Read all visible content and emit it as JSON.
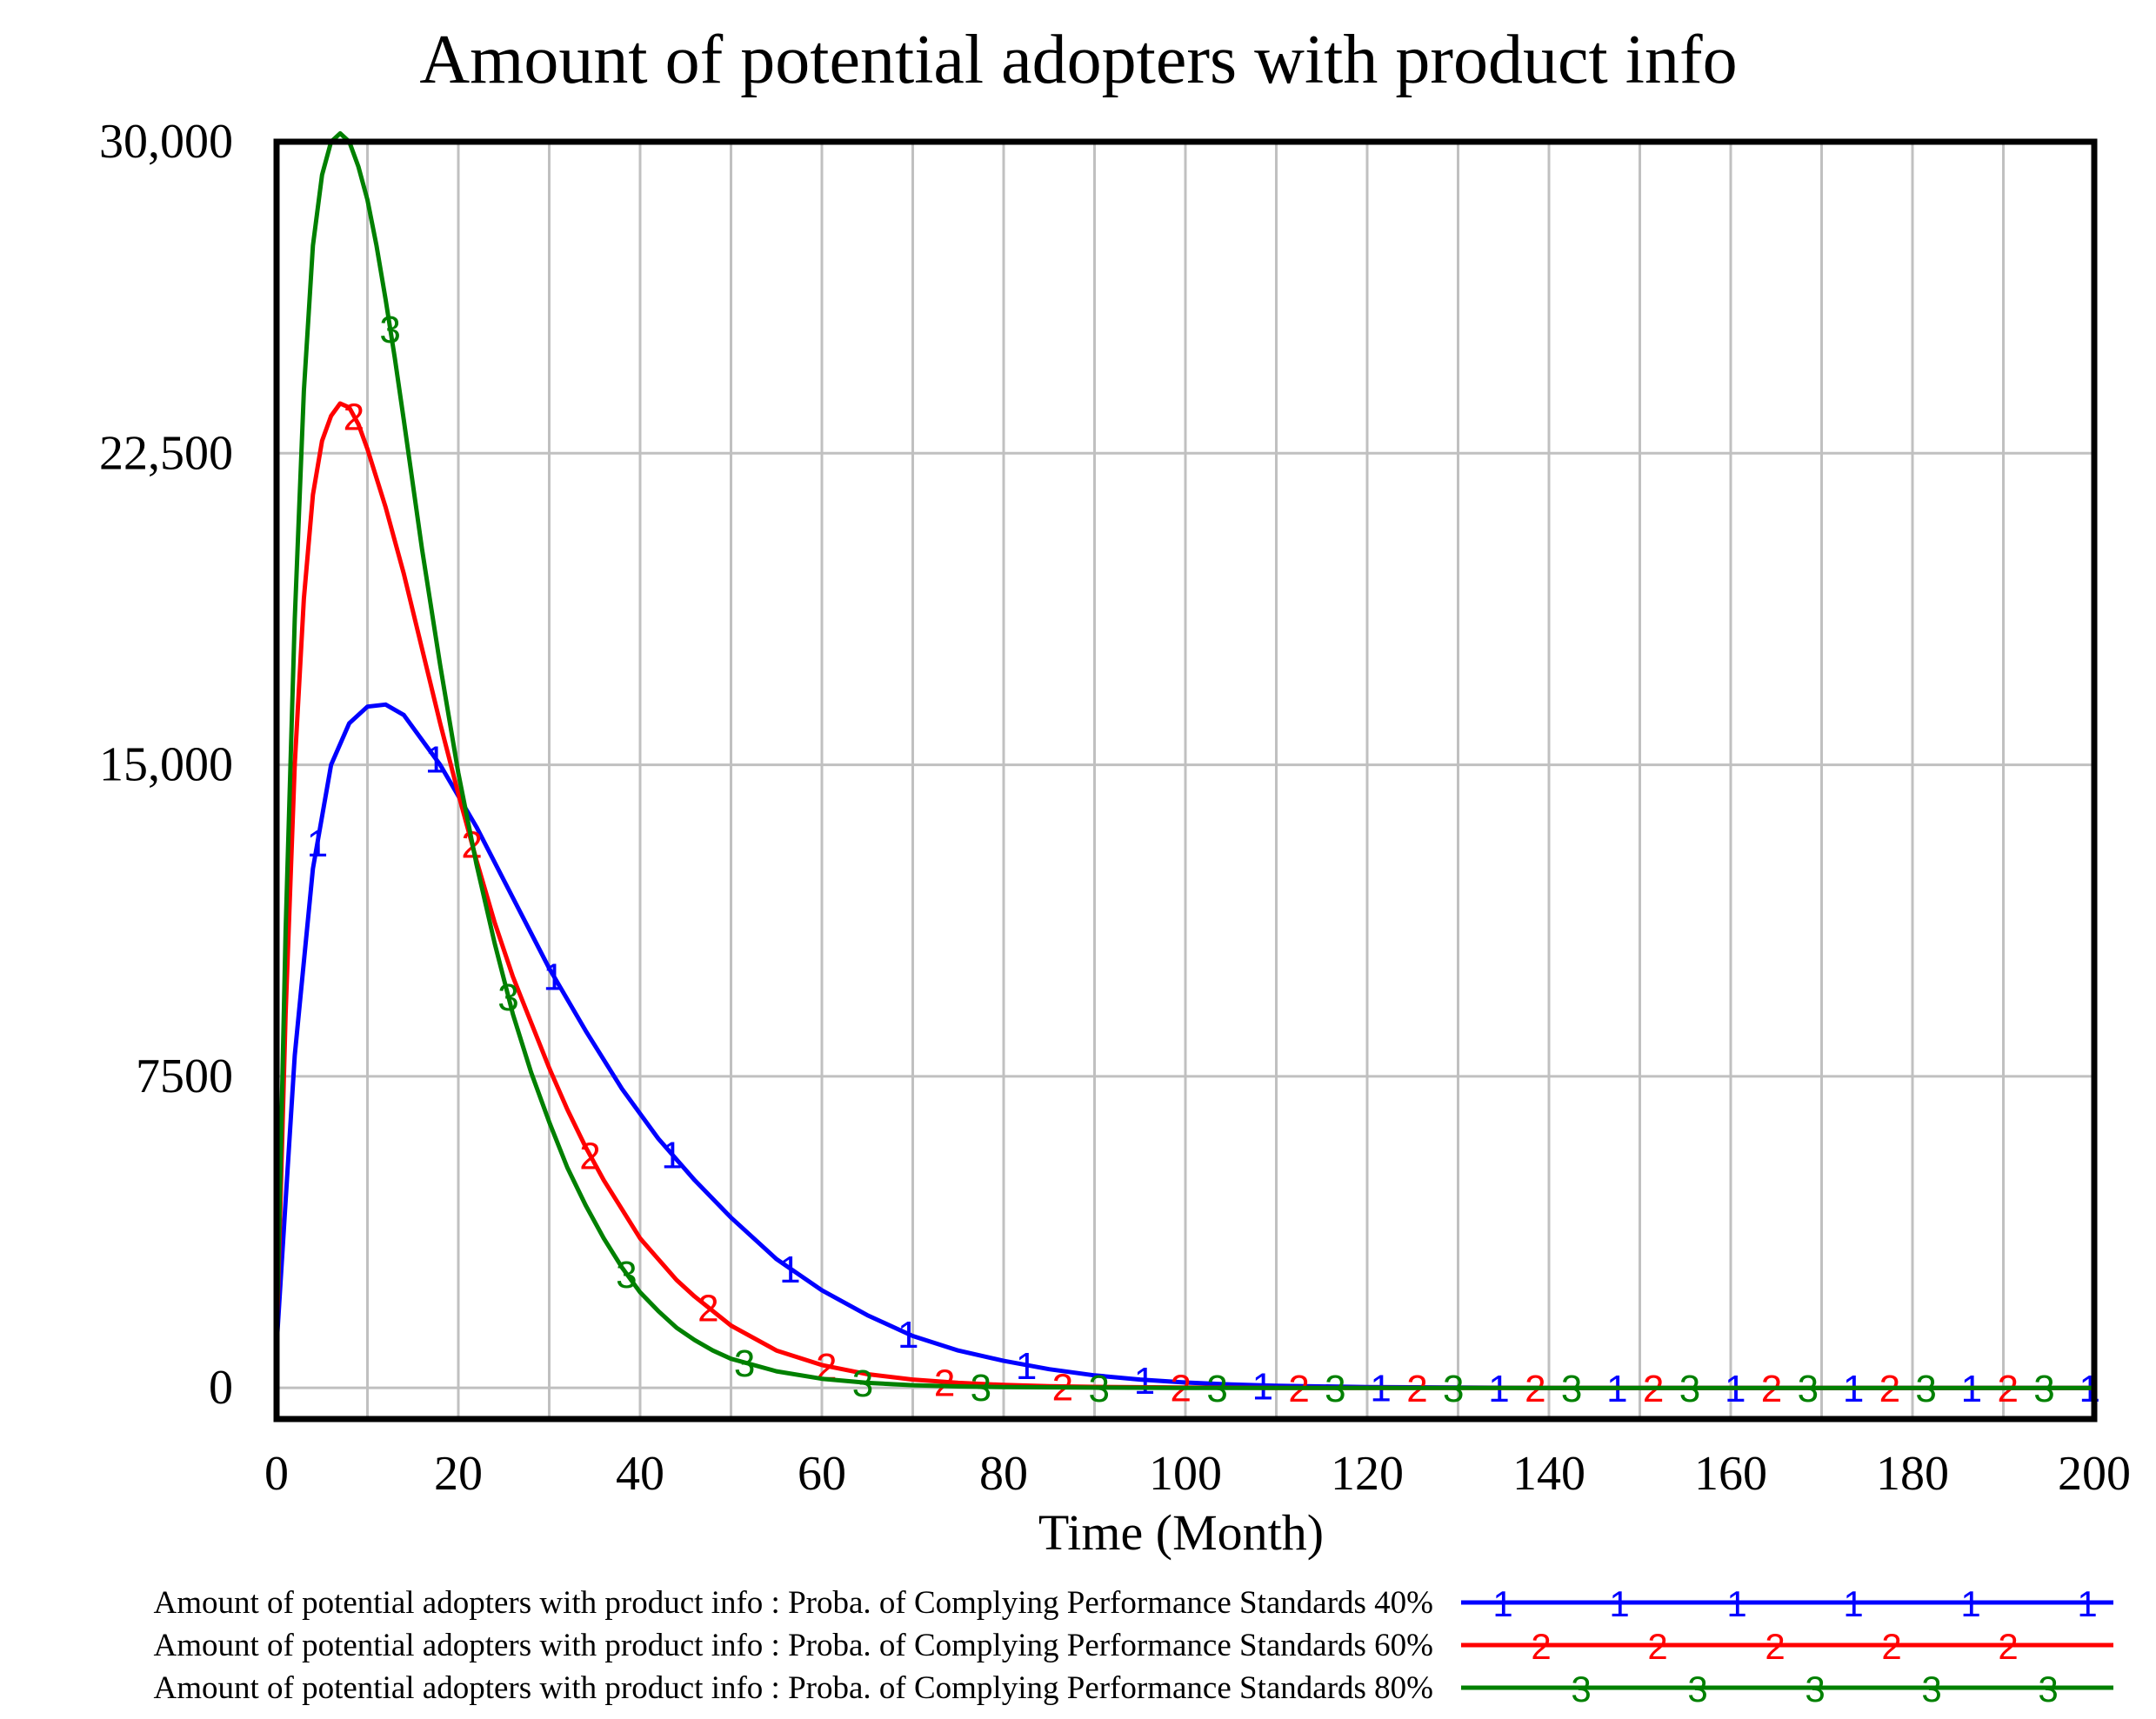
{
  "chart_data": {
    "type": "line",
    "title": "Amount of potential adopters with product info",
    "xlabel": "Time (Month)",
    "ylabel": "",
    "xlim": [
      0,
      200
    ],
    "ylim": [
      -750,
      30000
    ],
    "x_ticks": [
      0,
      20,
      40,
      60,
      80,
      100,
      120,
      140,
      160,
      180,
      200
    ],
    "x_tick_labels": [
      "0",
      "20",
      "40",
      "60",
      "80",
      "100",
      "120",
      "140",
      "160",
      "180",
      "200"
    ],
    "y_ticks": [
      0,
      7500,
      15000,
      22500,
      30000
    ],
    "y_tick_labels": [
      "0",
      "7500",
      "15,000",
      "22,500",
      "30,000"
    ],
    "grid": true,
    "legend_position": "bottom",
    "series": [
      {
        "name": "Amount of potential adopters with product info : Proba. of Complying Performance Standards 40%",
        "marker": "1",
        "color": "#0000ff",
        "x": [
          0,
          1,
          2,
          4,
          6,
          8,
          10,
          12,
          14,
          18,
          22,
          26,
          30,
          34,
          38,
          42,
          46,
          50,
          55,
          60,
          65,
          70,
          75,
          80,
          85,
          90,
          95,
          100,
          105,
          110,
          120,
          140,
          160,
          180,
          200
        ],
        "y": [
          1000,
          4500,
          8000,
          12500,
          15000,
          16000,
          16400,
          16450,
          16200,
          15000,
          13500,
          11800,
          10100,
          8600,
          7200,
          6000,
          5000,
          4100,
          3100,
          2350,
          1750,
          1250,
          900,
          650,
          450,
          300,
          200,
          130,
          80,
          50,
          20,
          0,
          0,
          0,
          0
        ]
      },
      {
        "name": "Amount of potential adopters with product info : Proba. of Complying Performance Standards 60%",
        "marker": "2",
        "color": "#ff0000",
        "x": [
          0,
          1,
          2,
          3,
          4,
          5,
          6,
          7,
          8,
          9,
          10,
          12,
          14,
          16,
          18,
          20,
          22,
          24,
          26,
          28,
          30,
          32,
          34,
          36,
          38,
          40,
          42,
          44,
          46,
          50,
          55,
          60,
          65,
          70,
          75,
          80,
          85,
          90,
          100,
          110,
          120,
          200
        ],
        "y": [
          1000,
          9000,
          15000,
          19000,
          21500,
          22800,
          23400,
          23700,
          23600,
          23200,
          22600,
          21200,
          19600,
          17800,
          16000,
          14300,
          12700,
          11200,
          9900,
          8800,
          7700,
          6700,
          5800,
          5000,
          4300,
          3600,
          3100,
          2600,
          2200,
          1500,
          900,
          550,
          330,
          200,
          120,
          70,
          40,
          25,
          8,
          0,
          0,
          0
        ]
      },
      {
        "name": "Amount of potential adopters with product info : Proba. of Complying Performance Standards 80%",
        "marker": "3",
        "color": "#008000",
        "x": [
          0,
          1,
          2,
          3,
          4,
          5,
          6,
          7,
          8,
          9,
          10,
          11,
          12,
          13,
          14,
          16,
          18,
          20,
          22,
          24,
          26,
          28,
          30,
          32,
          34,
          36,
          38,
          40,
          42,
          44,
          46,
          48,
          50,
          55,
          60,
          65,
          70,
          75,
          80,
          90,
          100,
          200
        ],
        "y": [
          1000,
          11000,
          18500,
          24000,
          27500,
          29200,
          30000,
          30200,
          30000,
          29400,
          28600,
          27500,
          26200,
          24800,
          23300,
          20200,
          17400,
          14800,
          12600,
          10700,
          9000,
          7600,
          6400,
          5300,
          4400,
          3600,
          2900,
          2300,
          1850,
          1450,
          1150,
          900,
          700,
          400,
          220,
          120,
          65,
          35,
          18,
          5,
          0,
          0
        ]
      }
    ]
  }
}
